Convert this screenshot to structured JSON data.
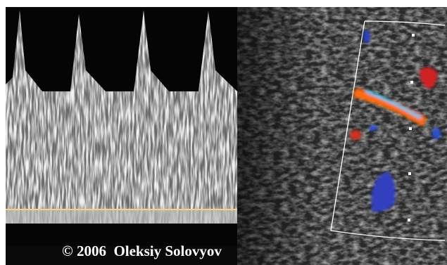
{
  "caption": "© 2006  Oleksiy Solovyov"
}
